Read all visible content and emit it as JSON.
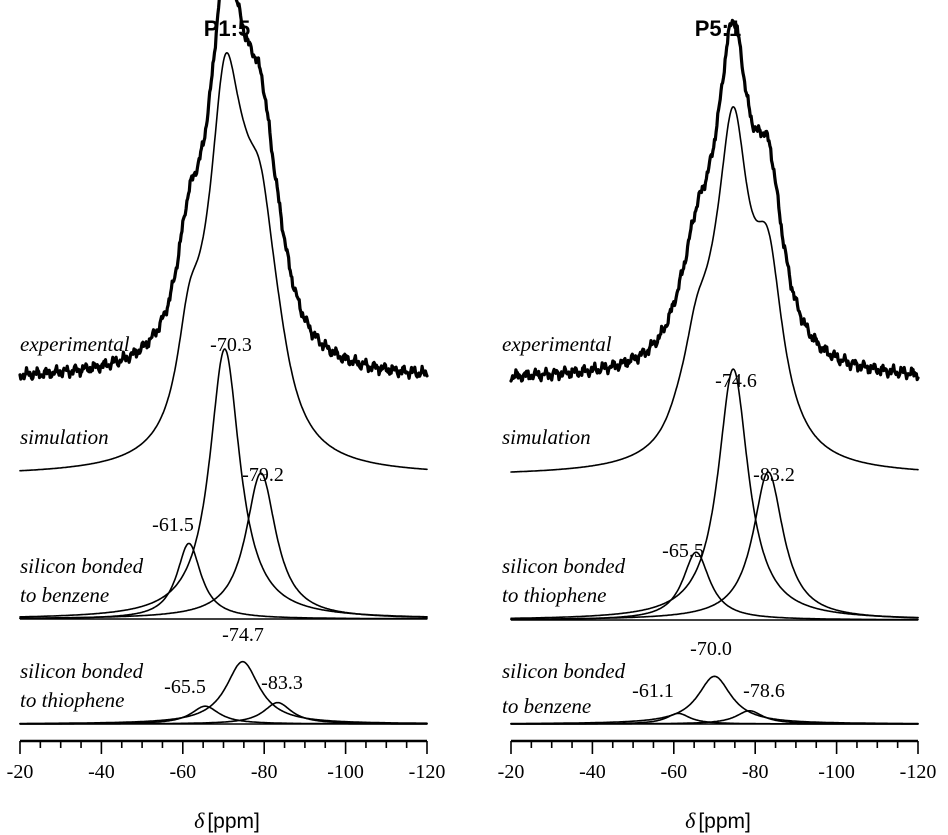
{
  "chart_data": [
    {
      "type": "line",
      "title": "P1:5",
      "xlabel_symbol": "δ",
      "xlabel_unit": "[ppm]",
      "xlim": [
        -20,
        -120
      ],
      "xticks": [
        -20,
        -40,
        -60,
        -80,
        -100,
        -120
      ],
      "grid": false,
      "series": [
        {
          "name": "experimental",
          "kind": "experimental",
          "peaks": [
            {
              "center": -61.5,
              "height": 0.3,
              "width": 3.6
            },
            {
              "center": -70.3,
              "height": 1.0,
              "width": 4.5
            },
            {
              "center": -79.2,
              "height": 0.56,
              "width": 4.5
            },
            {
              "center": -65.5,
              "height": 0.1,
              "width": 4.2
            },
            {
              "center": -74.7,
              "height": 0.35,
              "width": 5.0
            },
            {
              "center": -83.3,
              "height": 0.12,
              "width": 4.2
            }
          ]
        },
        {
          "name": "simulation",
          "kind": "sum",
          "peaks": [
            {
              "center": -61.5,
              "height": 0.3,
              "width": 3.6
            },
            {
              "center": -70.3,
              "height": 1.0,
              "width": 4.5
            },
            {
              "center": -79.2,
              "height": 0.56,
              "width": 4.5
            },
            {
              "center": -65.5,
              "height": 0.1,
              "width": 4.2
            },
            {
              "center": -74.7,
              "height": 0.35,
              "width": 5.0
            },
            {
              "center": -83.3,
              "height": 0.12,
              "width": 4.2
            }
          ]
        },
        {
          "name": "silicon bonded to benzene",
          "name_line1": "silicon bonded",
          "name_line2": "to benzene",
          "kind": "components",
          "peaks": [
            {
              "center": -61.5,
              "height": 0.28,
              "width": 3.6
            },
            {
              "center": -70.3,
              "height": 1.0,
              "width": 4.5
            },
            {
              "center": -79.2,
              "height": 0.54,
              "width": 4.5
            }
          ]
        },
        {
          "name": "silicon bonded to thiophene",
          "name_line1": "silicon bonded",
          "name_line2": "to thiophene",
          "kind": "components",
          "peaks": [
            {
              "center": -65.5,
              "height": 0.1,
              "width": 4.2
            },
            {
              "center": -74.7,
              "height": 0.35,
              "width": 5.0
            },
            {
              "center": -83.3,
              "height": 0.12,
              "width": 4.2
            }
          ]
        }
      ],
      "annotations": [
        "-70.3",
        "-61.5",
        "-79.2",
        "-74.7",
        "-65.5",
        "-83.3"
      ]
    },
    {
      "type": "line",
      "title": "P5:1",
      "xlabel_symbol": "δ",
      "xlabel_unit": "[ppm]",
      "xlim": [
        -20,
        -120
      ],
      "xticks": [
        -20,
        -40,
        -60,
        -80,
        -100,
        -120
      ],
      "grid": false,
      "series": [
        {
          "name": "experimental",
          "kind": "experimental",
          "peaks": [
            {
              "center": -65.5,
              "height": 0.27,
              "width": 4.0
            },
            {
              "center": -74.6,
              "height": 1.0,
              "width": 4.5
            },
            {
              "center": -83.2,
              "height": 0.59,
              "width": 4.5
            },
            {
              "center": -61.1,
              "height": 0.04,
              "width": 3.5
            },
            {
              "center": -70.0,
              "height": 0.18,
              "width": 5.0
            },
            {
              "center": -78.6,
              "height": 0.05,
              "width": 4.0
            }
          ]
        },
        {
          "name": "simulation",
          "kind": "sum",
          "peaks": [
            {
              "center": -65.5,
              "height": 0.27,
              "width": 4.0
            },
            {
              "center": -74.6,
              "height": 1.0,
              "width": 4.5
            },
            {
              "center": -83.2,
              "height": 0.59,
              "width": 4.5
            },
            {
              "center": -61.1,
              "height": 0.04,
              "width": 3.5
            },
            {
              "center": -70.0,
              "height": 0.18,
              "width": 5.0
            },
            {
              "center": -78.6,
              "height": 0.05,
              "width": 4.0
            }
          ]
        },
        {
          "name": "silicon bonded to thiophene",
          "name_line1": "silicon bonded",
          "name_line2": "to thiophene",
          "kind": "components",
          "peaks": [
            {
              "center": -65.5,
              "height": 0.27,
              "width": 4.0
            },
            {
              "center": -74.6,
              "height": 1.0,
              "width": 4.5
            },
            {
              "center": -83.2,
              "height": 0.59,
              "width": 4.5
            }
          ]
        },
        {
          "name": "silicon bonded to benzene",
          "name_line1": "silicon bonded",
          "name_line2": "to benzene",
          "kind": "components",
          "peaks": [
            {
              "center": -61.1,
              "height": 0.04,
              "width": 3.5
            },
            {
              "center": -70.0,
              "height": 0.18,
              "width": 5.0
            },
            {
              "center": -78.6,
              "height": 0.05,
              "width": 4.0
            }
          ]
        }
      ],
      "annotations": [
        "-74.6",
        "-65.5",
        "-83.2",
        "-70.0",
        "-61.1",
        "-78.6"
      ]
    }
  ]
}
